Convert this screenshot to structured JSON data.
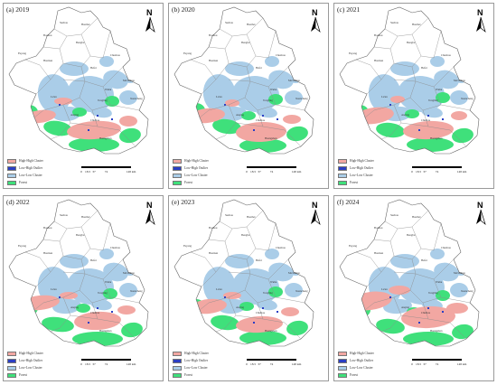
{
  "colors": {
    "high_high": "#f2a7a2",
    "low_high": "#2b3fc4",
    "low_low": "#aacde8",
    "forest": "#3fe07b",
    "boundary": "#8a8a8a"
  },
  "legend": [
    {
      "label": "High-High Cluster",
      "color": "#f2a7a2"
    },
    {
      "label": "Low-High Outlier",
      "color": "#2b3fc4"
    },
    {
      "label": "Low-Low Cluster",
      "color": "#aacde8"
    },
    {
      "label": "Forest",
      "color": "#3fe07b"
    }
  ],
  "north_label": "N",
  "scale_ticks": [
    "0",
    "18.5",
    "37",
    "74",
    "148 km"
  ],
  "panels": [
    {
      "label": "(a) 2019"
    },
    {
      "label": "(b) 2020"
    },
    {
      "label": "(c) 2021"
    },
    {
      "label": "(d) 2022"
    },
    {
      "label": "(e) 2023"
    },
    {
      "label": "(f) 2024"
    }
  ],
  "city_labels": [
    "Suzhou",
    "Huaibei",
    "Bozhou",
    "Bengbu",
    "Fuyang",
    "Huainan",
    "Hefei",
    "Chuzhou",
    "Ma'anshan",
    "Lu'an",
    "Wuhu",
    "Anqing",
    "Xuancheng",
    "Tongling",
    "Chizhou",
    "Huangshan"
  ]
}
